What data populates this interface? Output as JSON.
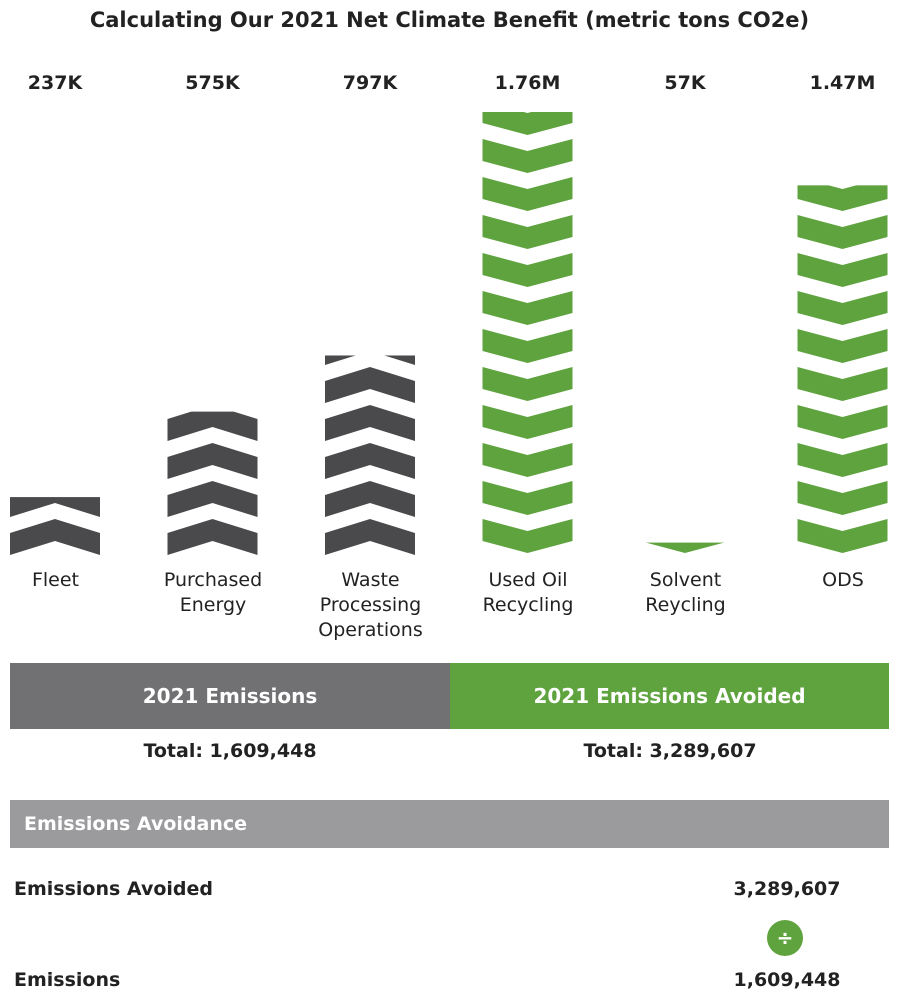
{
  "chart_data": {
    "type": "chevron-bar",
    "title": "Calculating Our 2021 Net Climate Benefit (metric tons CO2e)",
    "categories": [
      "Fleet",
      "Purchased Energy",
      "Waste Processing Operations",
      "Used Oil Recycling",
      "Solvent Reycling",
      "ODS"
    ],
    "values": [
      237000,
      575000,
      797000,
      1760000,
      57000,
      1470000
    ],
    "value_labels": [
      "237K",
      "575K",
      "797K",
      "1.76M",
      "57K",
      "1.47M"
    ],
    "colors": [
      "#4a4a4c",
      "#4a4a4c",
      "#4a4a4c",
      "#5ea33e",
      "#5ea33e",
      "#5ea33e"
    ]
  },
  "summary": {
    "emissions_label": "2021 Emissions",
    "avoided_label": "2021 Emissions Avoided",
    "emissions_total": "Total: 1,609,448",
    "avoided_total": "Total: 3,289,607",
    "section_title": "Emissions Avoidance",
    "rows": [
      {
        "label": "Emissions Avoided",
        "value": "3,289,607"
      },
      {
        "label": "Emissions",
        "value": "1,609,448"
      }
    ],
    "operator": "÷"
  }
}
